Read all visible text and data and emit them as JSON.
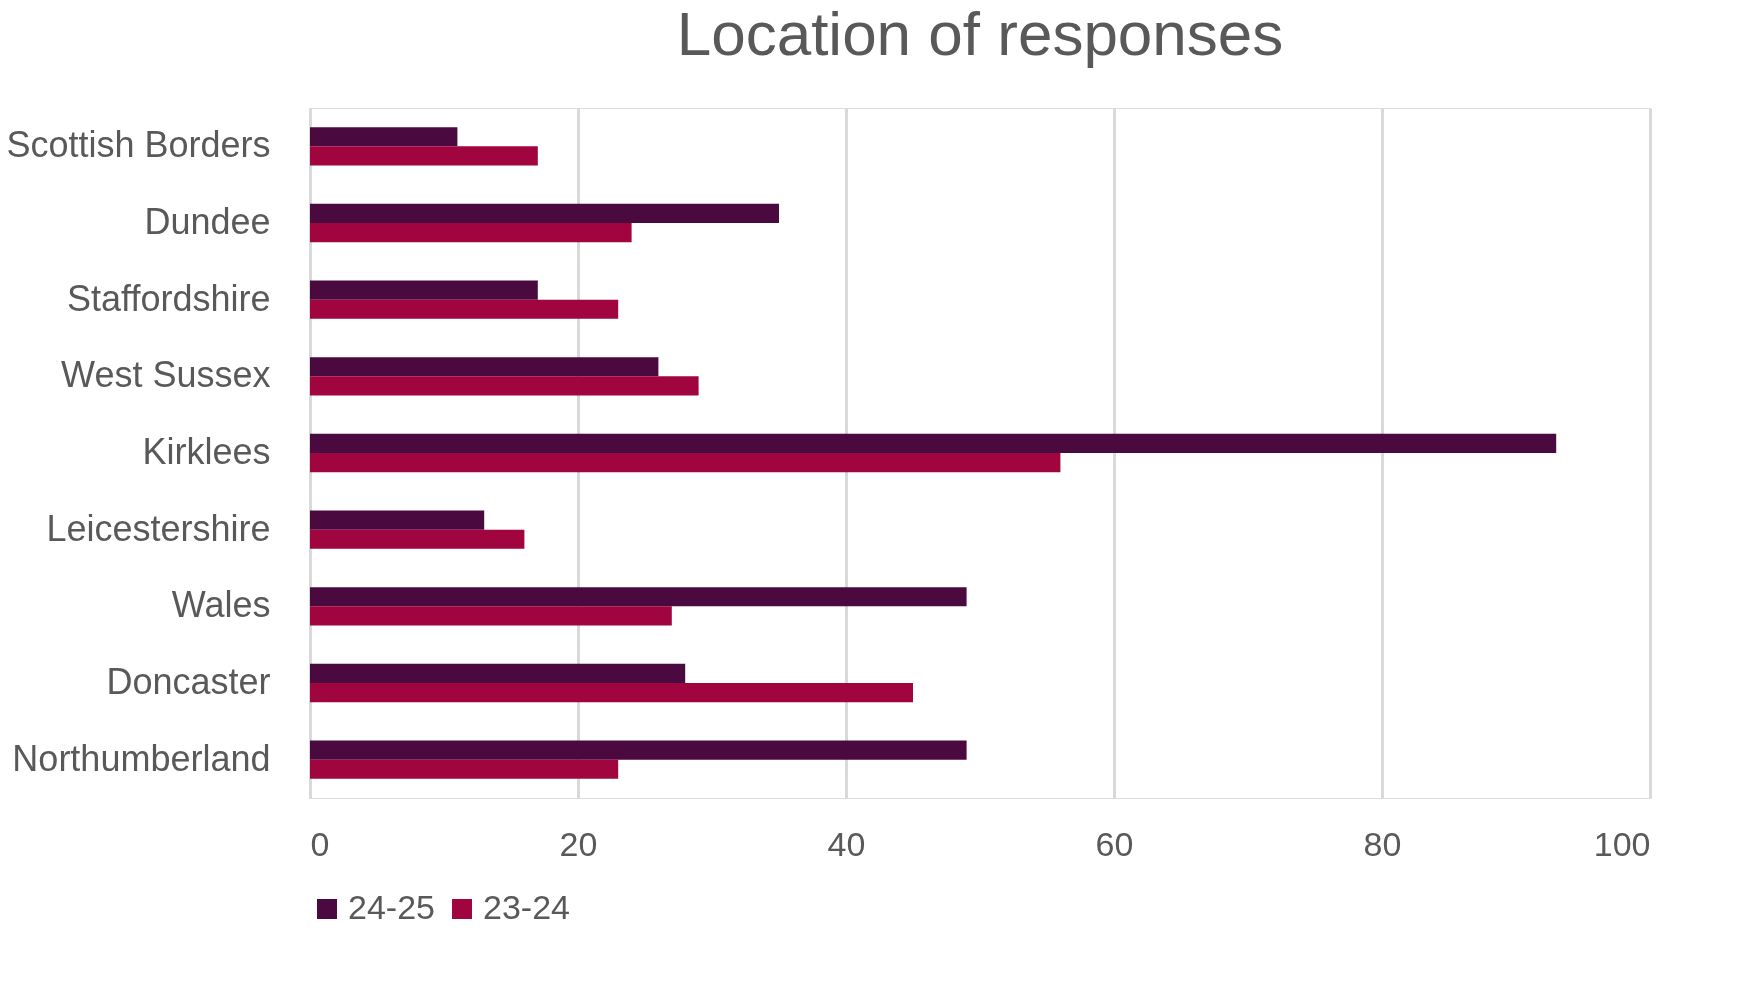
{
  "chart_data": {
    "type": "bar",
    "orientation": "horizontal",
    "title": "Location of responses",
    "categories": [
      "Scottish Borders",
      "Dundee",
      "Staffordshire",
      "West Sussex",
      "Kirklees",
      "Leicestershire",
      "Wales",
      "Doncaster",
      "Northumberland"
    ],
    "series": [
      {
        "name": "24-25",
        "color": "#4a0a40",
        "values": [
          11,
          35,
          17,
          26,
          93,
          13,
          49,
          28,
          49
        ]
      },
      {
        "name": "23-24",
        "color": "#a0053f",
        "values": [
          17,
          24,
          23,
          29,
          56,
          16,
          27,
          45,
          23
        ]
      }
    ],
    "xlim": [
      0,
      100
    ],
    "xticks": [
      0,
      20,
      40,
      60,
      80,
      100
    ],
    "grid": "x",
    "legend": "bottom"
  }
}
